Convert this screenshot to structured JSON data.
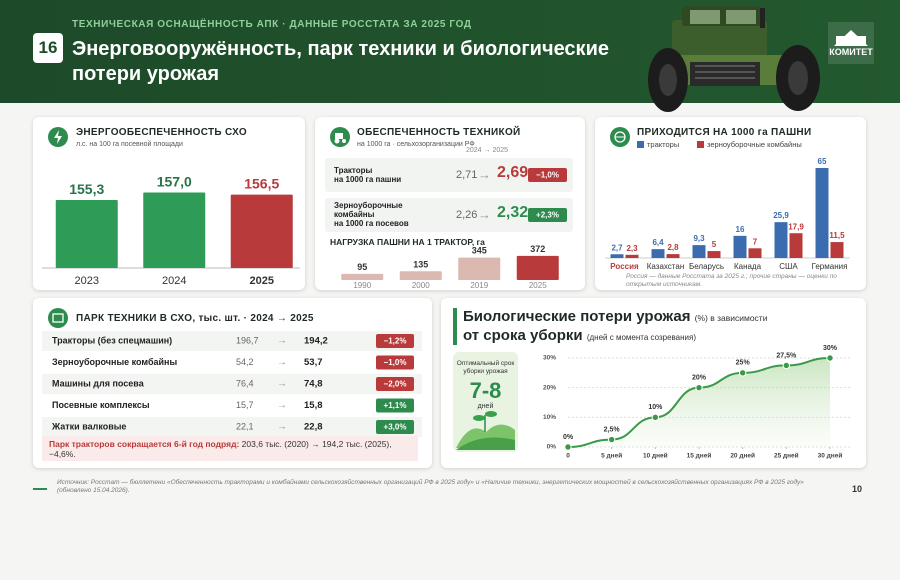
{
  "header": {
    "kicker": "ТЕХНИЧЕСКАЯ ОСНАЩЁННОСТЬ АПК · ДАННЫЕ РОССТАТА ЗА 2025 ГОД",
    "number": "16",
    "title": "Энерговооружённость, парк техники и биологические потери урожая",
    "logo": "КОМИТЕТ"
  },
  "tech": {
    "title": "ОБЕСПЕЧЕННОСТЬ ТЕХНИКОЙ",
    "subtitle": "на 1000 га · сельхозорганизации РФ",
    "period": "2024 → 2025",
    "arrow": "→",
    "rows": [
      {
        "label": "Тракторы\nна 1000 га пашни",
        "from": "2,71",
        "to": "2,69",
        "change": "−1,0%",
        "color": "#b83a3a"
      },
      {
        "label": "Зерноуборочные\nкомбайны\nна 1000 га посевов",
        "from": "2,26",
        "to": "2,32",
        "change": "+2,3%",
        "color": "#2e8b4e"
      }
    ]
  },
  "fleet": {
    "title": "ПАРК ТЕХНИКИ В СХО, тыс. шт.  ·  2024 → 2025",
    "arrow": "→",
    "rows": [
      {
        "name": "Тракторы (без спецмашин)",
        "from": "196,7",
        "to": "194,2",
        "change": "−1,2%",
        "color": "#b83a3a"
      },
      {
        "name": "Зерноуборочные комбайны",
        "from": "54,2",
        "to": "53,7",
        "change": "−1,0%",
        "color": "#b83a3a"
      },
      {
        "name": "Машины для посева",
        "from": "76,4",
        "to": "74,8",
        "change": "−2,0%",
        "color": "#b83a3a"
      },
      {
        "name": "Посевные комплексы",
        "from": "15,7",
        "to": "15,8",
        "change": "+1,1%",
        "color": "#2e8b4e"
      },
      {
        "name": "Жатки валковые",
        "from": "22,1",
        "to": "22,8",
        "change": "+3,0%",
        "color": "#2e8b4e"
      }
    ],
    "note_lead": "Парк тракторов сокращается 6-й год подряд:",
    "note": "203,6 тыс. (2020) → 194,2 тыс. (2025), −4,6%."
  },
  "harvest_card": {
    "caption": "Оптимальный срок уборки урожая",
    "value": "7-8",
    "unit": "дней"
  },
  "footer": {
    "source": "Источник: Росстат — бюллетени «Обеспеченность тракторами и комбайнами сельскохозяйственных организаций РФ в 2025 году» и «Наличие техники, энергетических мощностей в сельскохозяйственных организациях РФ в 2025 году» (обновлено 15.04.2026).",
    "page": "10"
  },
  "chart_data": [
    {
      "type": "bar",
      "title": "ЭНЕРГООБЕСПЕЧЕННОСТЬ СХО",
      "subtitle": "л.с. на 100 га посевной площади",
      "categories": [
        "2023",
        "2024",
        "2025"
      ],
      "values": [
        155.3,
        157.0,
        156.5
      ],
      "value_labels": [
        "155,3",
        "157,0",
        "156,5"
      ],
      "colors": [
        "#2e9b57",
        "#2e9b57",
        "#b83a3a"
      ],
      "ylim": [
        140,
        158
      ]
    },
    {
      "type": "bar",
      "title": "НАГРУЗКА ПАШНИ НА 1 ТРАКТОР, га",
      "categories": [
        "1990",
        "2000",
        "2019",
        "2025"
      ],
      "values": [
        95,
        135,
        345,
        372
      ],
      "colors": [
        "#dcb9b0",
        "#dcb9b0",
        "#dcb9b0",
        "#b83a3a"
      ],
      "ylim": [
        0,
        400
      ]
    },
    {
      "type": "grouped_bar",
      "title": "ПРИХОДИТСЯ НА 1000 га ПАШНИ",
      "categories": [
        "Россия",
        "Казахстан",
        "Беларусь",
        "Канада",
        "США",
        "Германия"
      ],
      "series": [
        {
          "name": "тракторы",
          "color": "#3c6cb0",
          "values": [
            2.7,
            6.4,
            9.3,
            16,
            25.9,
            65
          ],
          "value_labels": [
            "2,7",
            "6,4",
            "9,3",
            "16",
            "25,9",
            "65"
          ]
        },
        {
          "name": "зерноуборочные комбайны",
          "color": "#b83a3a",
          "values": [
            2.3,
            2.8,
            5,
            7,
            17.9,
            11.5
          ],
          "value_labels": [
            "2,3",
            "2,8",
            "5",
            "7",
            "17,9",
            "11,5"
          ]
        }
      ],
      "ylim": [
        0,
        65
      ],
      "note": "Россия — данные Росстата за 2025 г.; прочие страны — оценки по открытым источникам."
    },
    {
      "type": "line",
      "title": "Биологические потери урожая",
      "title_note": "(%) в зависимости",
      "subtitle": "от срока уборки",
      "subtitle_note": "(дней с момента созревания)",
      "x": [
        0,
        5,
        10,
        15,
        20,
        25,
        30
      ],
      "values": [
        0,
        2.5,
        10,
        20,
        25,
        27.5,
        30
      ],
      "value_labels": [
        "0%",
        "2,5%",
        "10%",
        "20%",
        "25%",
        "27,5%",
        "30%"
      ],
      "xlim": [
        0,
        30
      ],
      "xticks": [
        0,
        {
          "value": 5,
          "label": "5 дней"
        },
        {
          "value": 10,
          "label": "10 дней"
        },
        {
          "value": 15,
          "label": "15 дней"
        },
        {
          "value": 20,
          "label": "20 дней"
        },
        {
          "value": 25,
          "label": "25 дней"
        },
        {
          "value": 30,
          "label": "30 дней"
        }
      ],
      "ylim": [
        0,
        30
      ],
      "yticks": [
        {
          "value": 0,
          "label": "0%"
        },
        {
          "value": 10,
          "label": "10%"
        },
        {
          "value": 20,
          "label": "20%"
        },
        {
          "value": 30,
          "label": "30%"
        }
      ],
      "color": "#3a9a4a",
      "grid": true
    }
  ]
}
